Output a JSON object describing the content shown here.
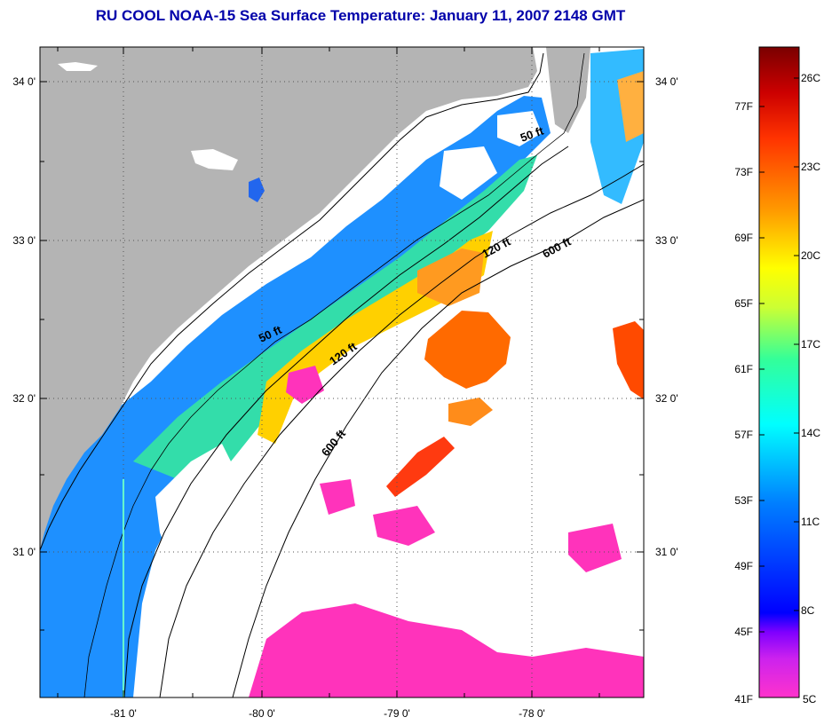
{
  "title": "RU COOL  NOAA-15  Sea Surface Temperature:  January 11, 2007 2148 GMT",
  "map": {
    "lat_labels": [
      "34 0'",
      "33 0'",
      "32 0'",
      "31 0'"
    ],
    "lon_labels": [
      "-81 0'",
      "-80 0'",
      "-79 0'",
      "-78 0'"
    ],
    "isobaths": [
      {
        "label": "50 ft"
      },
      {
        "label": "50 ft"
      },
      {
        "label": "120 ft"
      },
      {
        "label": "120 ft"
      },
      {
        "label": "600 ft"
      },
      {
        "label": "600 ft"
      }
    ],
    "colors": {
      "land": "#b4b4b4",
      "cloud": "#ffffff",
      "coast": "#000000",
      "grid": "#555555"
    }
  },
  "colorbar": {
    "fahrenheit_labels": [
      "77F",
      "73F",
      "69F",
      "65F",
      "61F",
      "57F",
      "53F",
      "49F",
      "45F",
      "41F"
    ],
    "celsius_labels": [
      "26C",
      "23C",
      "20C",
      "17C",
      "14C",
      "11C",
      "8C",
      "5C"
    ],
    "gradient_colors": [
      "#ff33cc",
      "#8000ff",
      "#0000ff",
      "#0080ff",
      "#00ffff",
      "#33ff99",
      "#ccff33",
      "#ffff00",
      "#ff9900",
      "#ff3300",
      "#cc0000",
      "#7a0000"
    ]
  }
}
